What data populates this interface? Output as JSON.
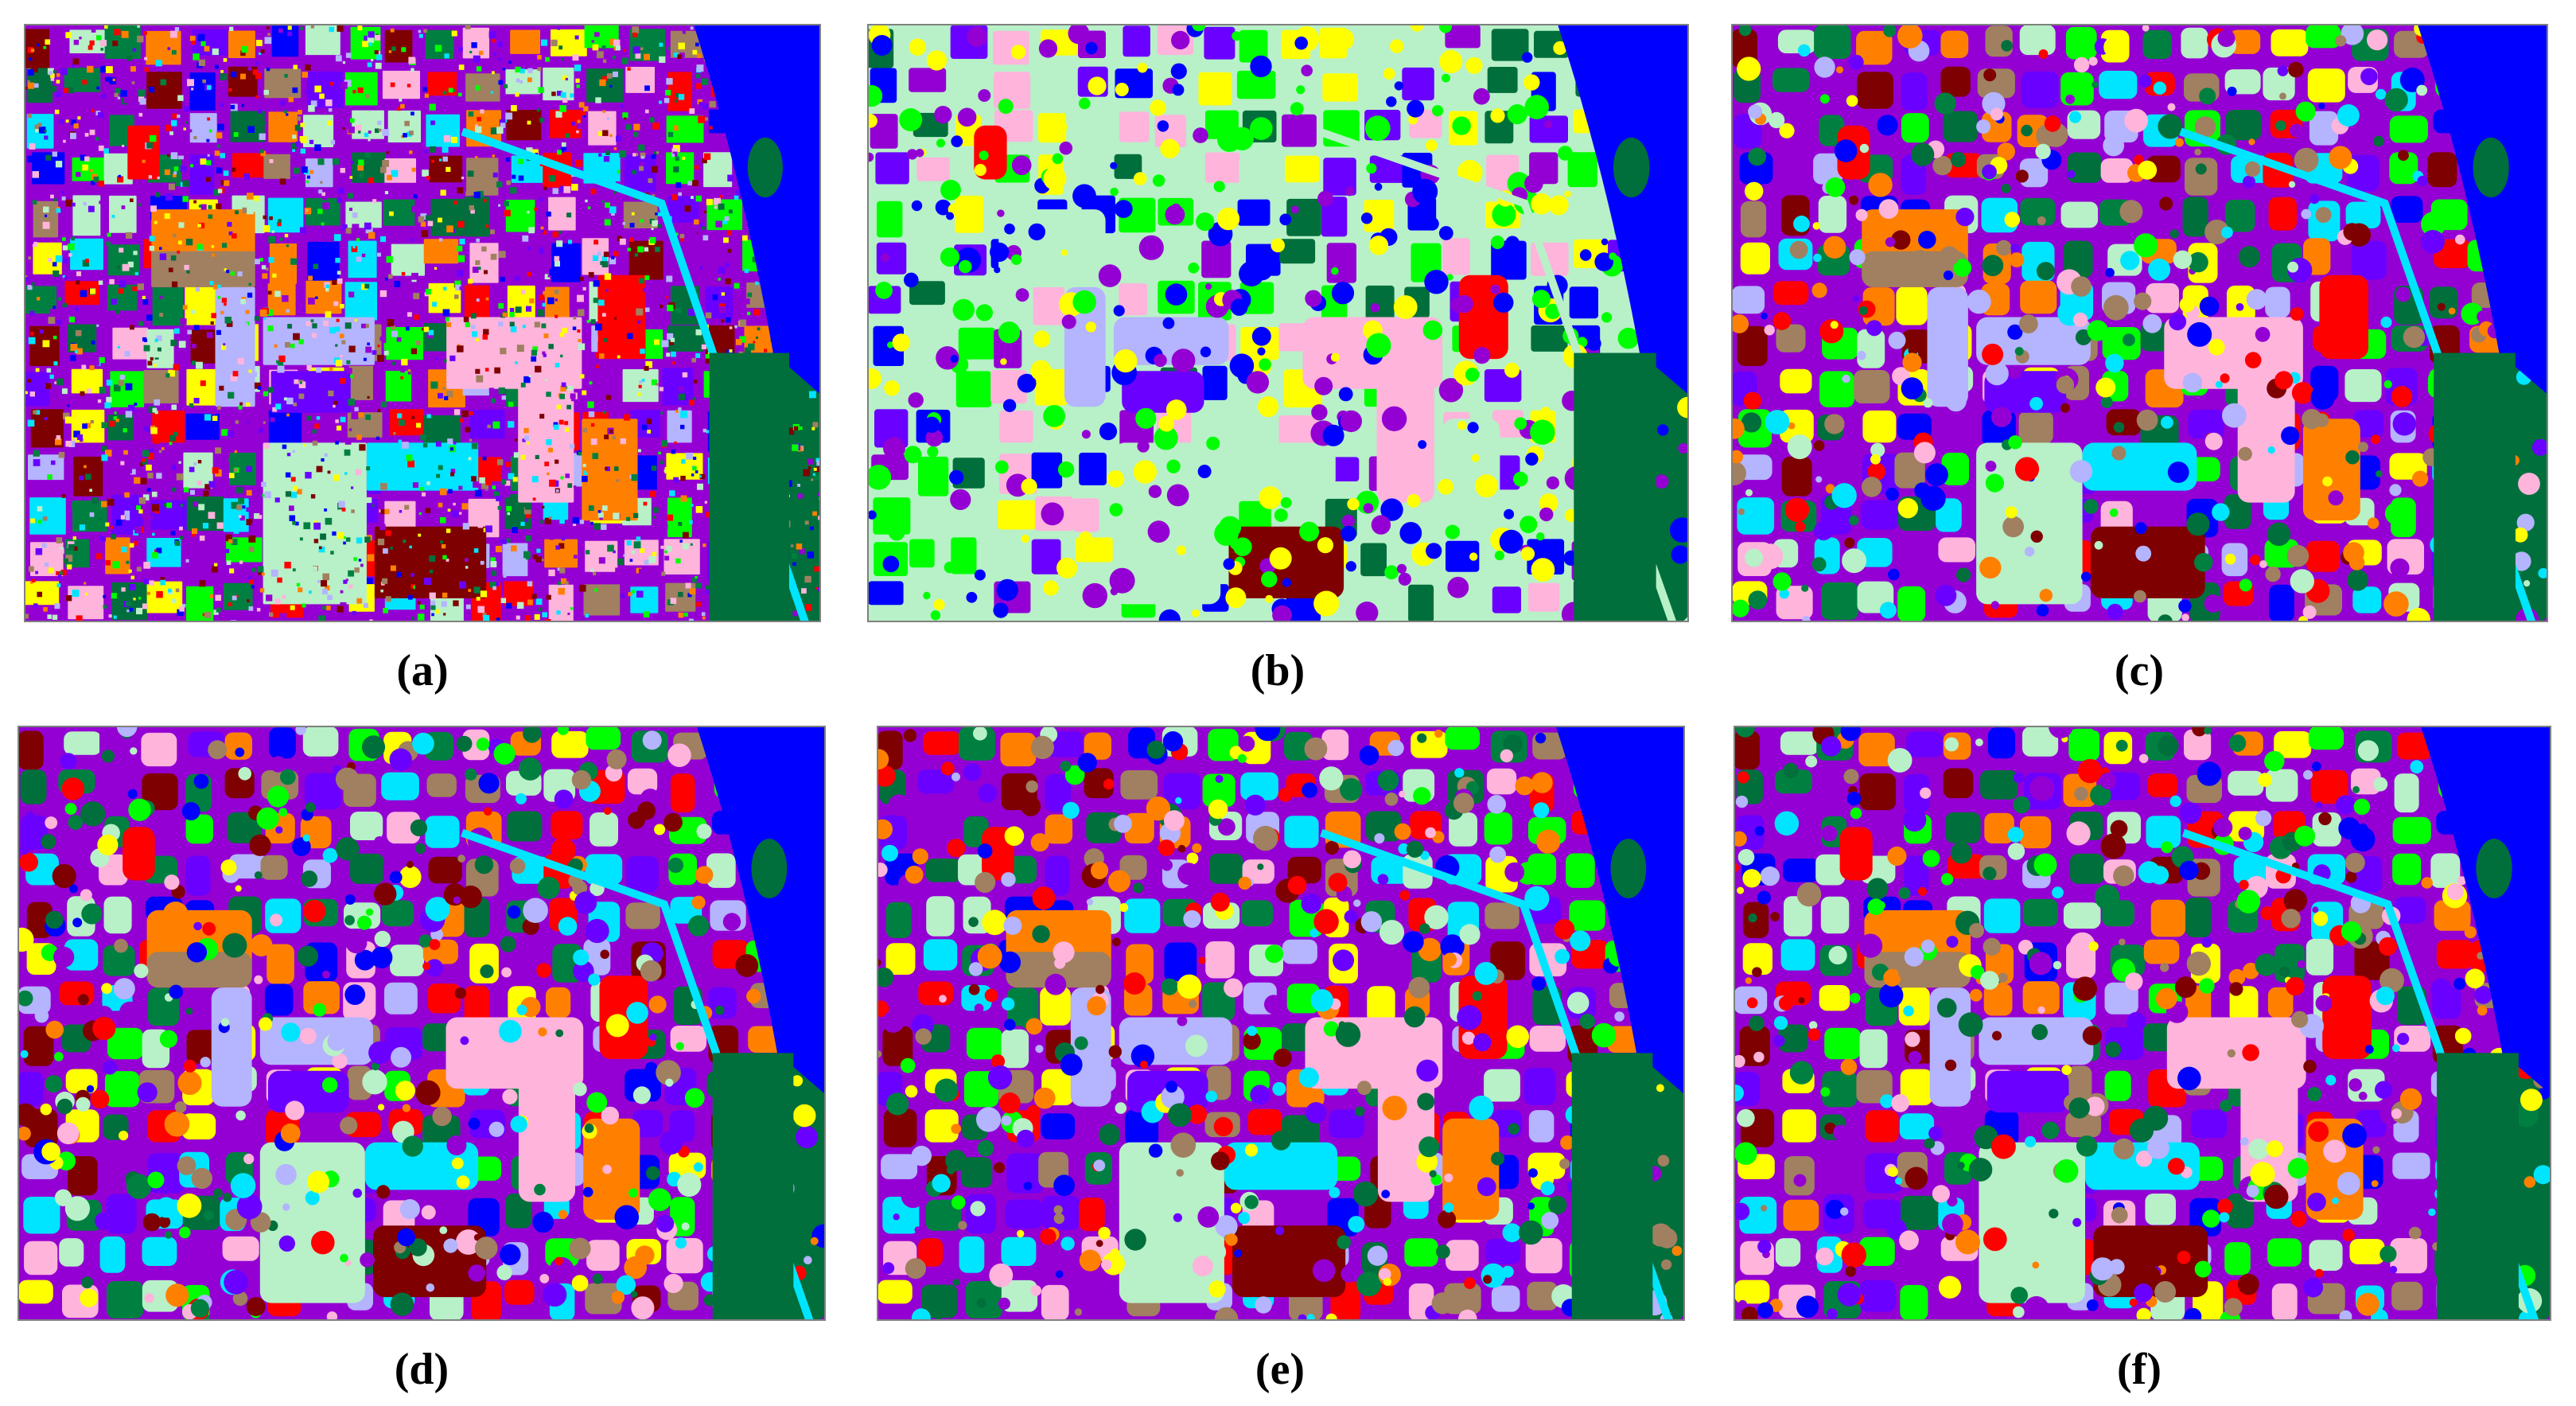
{
  "figure": {
    "panels": [
      {
        "id": "a",
        "caption": "(a)",
        "variant": 0
      },
      {
        "id": "b",
        "caption": "(b)",
        "variant": 1
      },
      {
        "id": "c",
        "caption": "(c)",
        "variant": 2
      },
      {
        "id": "d",
        "caption": "(d)",
        "variant": 3
      },
      {
        "id": "e",
        "caption": "(e)",
        "variant": 4
      },
      {
        "id": "f",
        "caption": "(f)",
        "variant": 5
      }
    ],
    "class_colors": [
      "#ffff00",
      "#9400d3",
      "#00ff00",
      "#ff8000",
      "#0000ff",
      "#ff0000",
      "#006f3c",
      "#7f0000",
      "#b8f0c8",
      "#00e5ff",
      "#ffb4dc",
      "#b4b4ff",
      "#a08060",
      "#6a00ff",
      "#008040"
    ],
    "background_color": "#006f3c"
  }
}
